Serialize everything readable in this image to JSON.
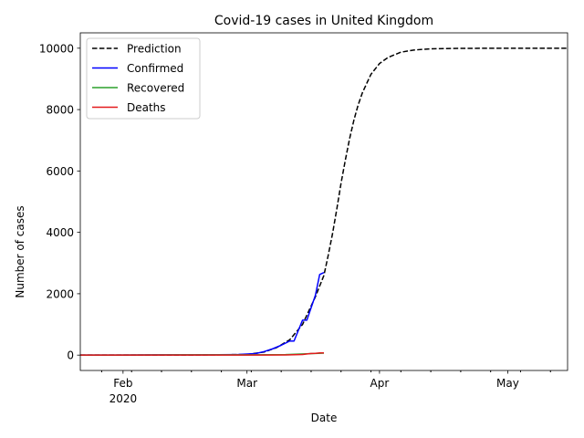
{
  "chart_data": {
    "type": "line",
    "title": "Covid-19 cases in United Kingdom",
    "xlabel": "Date",
    "ylabel": "Number of cases",
    "x_range": [
      "2020-01-22",
      "2020-05-15"
    ],
    "ylim": [
      -500,
      10500
    ],
    "y_ticks": [
      0,
      2000,
      4000,
      6000,
      8000,
      10000
    ],
    "x_ticks": [
      {
        "date": "2020-02-01",
        "label": "Feb",
        "sublabel": "2020"
      },
      {
        "date": "2020-03-01",
        "label": "Mar",
        "sublabel": ""
      },
      {
        "date": "2020-04-01",
        "label": "Apr",
        "sublabel": ""
      },
      {
        "date": "2020-05-01",
        "label": "May",
        "sublabel": ""
      }
    ],
    "legend_position": "top-left",
    "series": [
      {
        "name": "Prediction",
        "color": "#000000",
        "style": "dashed",
        "x": [
          "2020-01-22",
          "2020-02-15",
          "2020-03-01",
          "2020-03-05",
          "2020-03-08",
          "2020-03-11",
          "2020-03-14",
          "2020-03-17",
          "2020-03-19",
          "2020-03-20",
          "2020-03-21",
          "2020-03-22",
          "2020-03-23",
          "2020-03-24",
          "2020-03-25",
          "2020-03-26",
          "2020-03-27",
          "2020-03-28",
          "2020-03-30",
          "2020-04-01",
          "2020-04-03",
          "2020-04-06",
          "2020-04-09",
          "2020-04-13",
          "2020-04-20",
          "2020-05-01",
          "2020-05-15"
        ],
        "y": [
          0,
          0,
          20,
          100,
          250,
          500,
          1000,
          1900,
          2600,
          3250,
          3950,
          4750,
          5600,
          6350,
          7050,
          7650,
          8150,
          8550,
          9150,
          9500,
          9700,
          9870,
          9940,
          9980,
          9995,
          10000,
          10000
        ]
      },
      {
        "name": "Confirmed",
        "color": "#0000ff",
        "style": "solid",
        "x": [
          "2020-01-22",
          "2020-01-31",
          "2020-02-10",
          "2020-02-20",
          "2020-02-28",
          "2020-03-01",
          "2020-03-03",
          "2020-03-05",
          "2020-03-07",
          "2020-03-09",
          "2020-03-11",
          "2020-03-12",
          "2020-03-13",
          "2020-03-14",
          "2020-03-15",
          "2020-03-16",
          "2020-03-17",
          "2020-03-18",
          "2020-03-19"
        ],
        "y": [
          0,
          2,
          8,
          9,
          20,
          36,
          51,
          115,
          206,
          321,
          460,
          459,
          800,
          1140,
          1140,
          1543,
          1950,
          2626,
          2690
        ]
      },
      {
        "name": "Recovered",
        "color": "#2ca02c",
        "style": "solid",
        "x": [
          "2020-01-22",
          "2020-02-15",
          "2020-03-01",
          "2020-03-10",
          "2020-03-19"
        ],
        "y": [
          0,
          8,
          8,
          18,
          65
        ]
      },
      {
        "name": "Deaths",
        "color": "#e31a1c",
        "style": "solid",
        "x": [
          "2020-01-22",
          "2020-03-05",
          "2020-03-10",
          "2020-03-14",
          "2020-03-16",
          "2020-03-17",
          "2020-03-18",
          "2020-03-19"
        ],
        "y": [
          0,
          1,
          6,
          21,
          55,
          56,
          72,
          72
        ]
      }
    ]
  }
}
